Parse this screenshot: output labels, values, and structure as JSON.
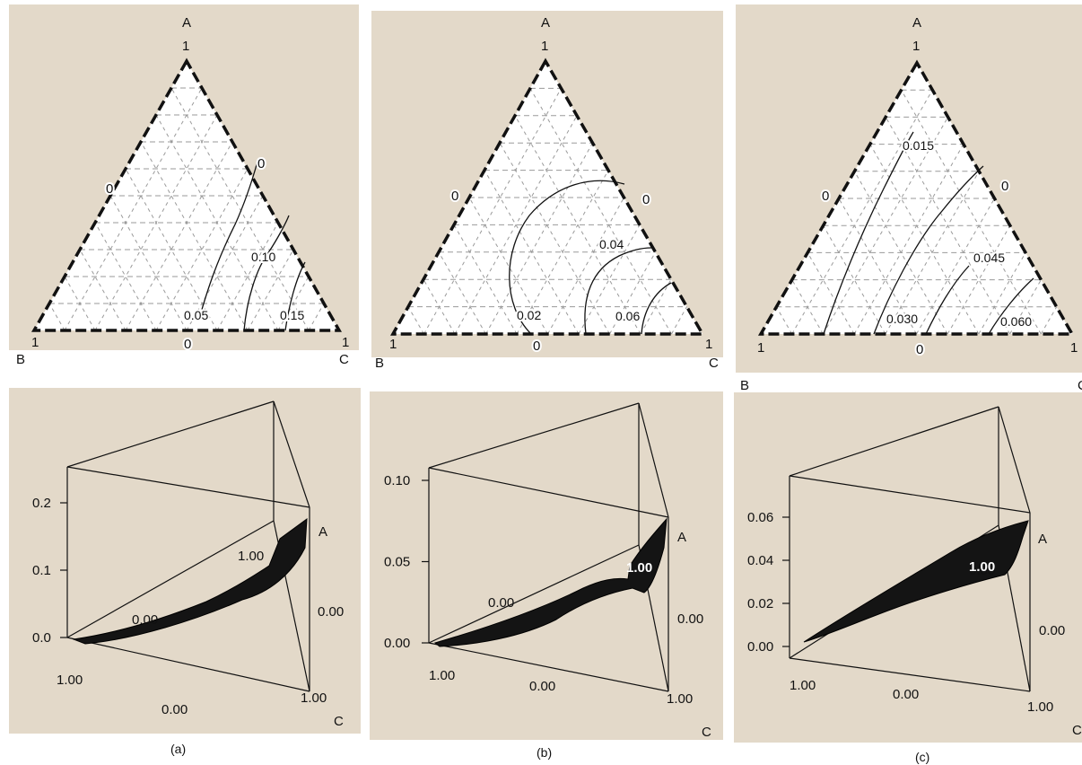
{
  "colors": {
    "panel_bg": "#e3d9c9",
    "triangle_fill": "#ffffff",
    "grid": "#9a9a9a",
    "contour": "#111111",
    "surface": "#141414"
  },
  "chart_data": [
    {
      "type": "ternary-contour",
      "panel": "(a)",
      "vertices": {
        "top": "A",
        "left": "B",
        "right": "C"
      },
      "vertex_values": {
        "top": "1",
        "left": "1",
        "right": "1"
      },
      "edge_zero_labels": [
        "0",
        "0",
        "0"
      ],
      "contour_levels": [
        "0.05",
        "0.10",
        "0.15"
      ],
      "grid": true
    },
    {
      "type": "ternary-contour",
      "panel": "(b)",
      "vertices": {
        "top": "A",
        "left": "B",
        "right": "C"
      },
      "vertex_values": {
        "top": "1",
        "left": "1",
        "right": "1"
      },
      "edge_zero_labels": [
        "0",
        "0",
        "0"
      ],
      "contour_levels": [
        "0.02",
        "0.04",
        "0.06"
      ],
      "grid": true
    },
    {
      "type": "ternary-contour",
      "panel": "(c)",
      "vertices": {
        "top": "A",
        "left": "B",
        "right": "C"
      },
      "vertex_values": {
        "top": "1",
        "left": "1",
        "right": "1"
      },
      "edge_zero_labels": [
        "0",
        "0",
        "0"
      ],
      "contour_levels": [
        "0.015",
        "0.030",
        "0.045",
        "0.060"
      ],
      "grid": true
    },
    {
      "type": "ternary-surface-3d",
      "panel": "(a)",
      "z_ticks": [
        "0.0",
        "0.1",
        "0.2"
      ],
      "zlim": [
        0,
        0.2
      ],
      "axis_labels": {
        "a": "A",
        "c": "C"
      },
      "edge_labels": [
        "1.00",
        "0.00",
        "1.00",
        "0.00",
        "1.00"
      ]
    },
    {
      "type": "ternary-surface-3d",
      "panel": "(b)",
      "z_ticks": [
        "0.00",
        "0.05",
        "0.10"
      ],
      "zlim": [
        0,
        0.1
      ],
      "axis_labels": {
        "a": "A",
        "c": "C"
      },
      "edge_labels": [
        "1.00",
        "0.00",
        "1.00",
        "0.00",
        "1.00"
      ]
    },
    {
      "type": "ternary-surface-3d",
      "panel": "(c)",
      "z_ticks": [
        "0.00",
        "0.02",
        "0.04",
        "0.06"
      ],
      "zlim": [
        0,
        0.06
      ],
      "axis_labels": {
        "a": "A",
        "c": "C"
      },
      "edge_labels": [
        "1.00",
        "0.00",
        "1.00",
        "0.00",
        "1.00"
      ]
    }
  ],
  "captions": [
    "(a)",
    "(b)",
    "(c)"
  ]
}
